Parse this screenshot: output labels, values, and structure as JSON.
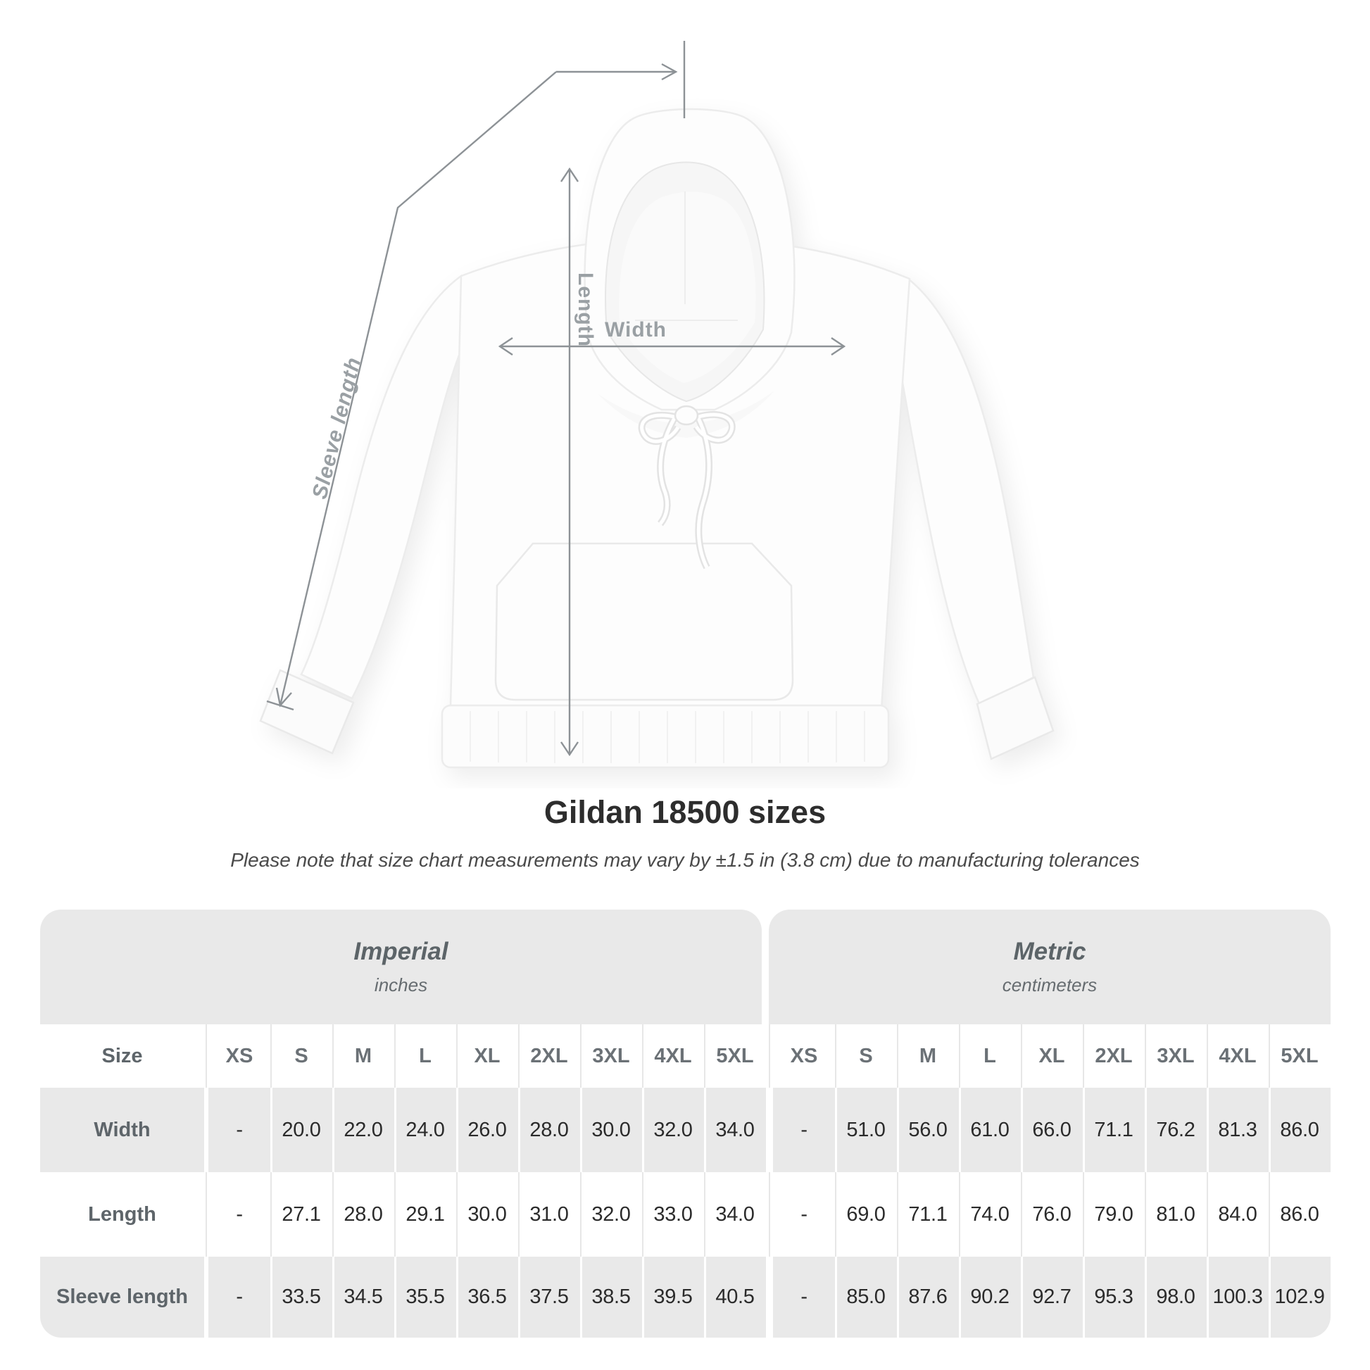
{
  "diagram": {
    "labels": {
      "sleeve_length": "Sleeve length",
      "length": "Length",
      "width": "Width"
    },
    "line_color": "#8d9296",
    "label_color": "#9aa0a4"
  },
  "title": "Gildan 18500 sizes",
  "subtitle": "Please note that size chart measurements may vary by ±1.5 in (3.8 cm) due to manufacturing tolerances",
  "chart_data": {
    "type": "table",
    "title": "Gildan 18500 sizes",
    "size_label": "Size",
    "sizes": [
      "XS",
      "S",
      "M",
      "L",
      "XL",
      "2XL",
      "3XL",
      "4XL",
      "5XL"
    ],
    "unit_groups": [
      {
        "label": "Imperial",
        "unit": "inches"
      },
      {
        "label": "Metric",
        "unit": "centimeters"
      }
    ],
    "rows": [
      {
        "label": "Width",
        "imperial": [
          "-",
          "20.0",
          "22.0",
          "24.0",
          "26.0",
          "28.0",
          "30.0",
          "32.0",
          "34.0"
        ],
        "metric": [
          "-",
          "51.0",
          "56.0",
          "61.0",
          "66.0",
          "71.1",
          "76.2",
          "81.3",
          "86.0"
        ]
      },
      {
        "label": "Length",
        "imperial": [
          "-",
          "27.1",
          "28.0",
          "29.1",
          "30.0",
          "31.0",
          "32.0",
          "33.0",
          "34.0"
        ],
        "metric": [
          "-",
          "69.0",
          "71.1",
          "74.0",
          "76.0",
          "79.0",
          "81.0",
          "84.0",
          "86.0"
        ]
      },
      {
        "label": "Sleeve length",
        "imperial": [
          "-",
          "33.5",
          "34.5",
          "35.5",
          "36.5",
          "37.5",
          "38.5",
          "39.5",
          "40.5"
        ],
        "metric": [
          "-",
          "85.0",
          "87.6",
          "90.2",
          "92.7",
          "95.3",
          "98.0",
          "100.3",
          "102.9"
        ]
      }
    ]
  },
  "colors": {
    "band": "#e9e9e9",
    "row_label": "#5e656a",
    "value": "#2b2b2b",
    "title": "#2d2d2d"
  }
}
